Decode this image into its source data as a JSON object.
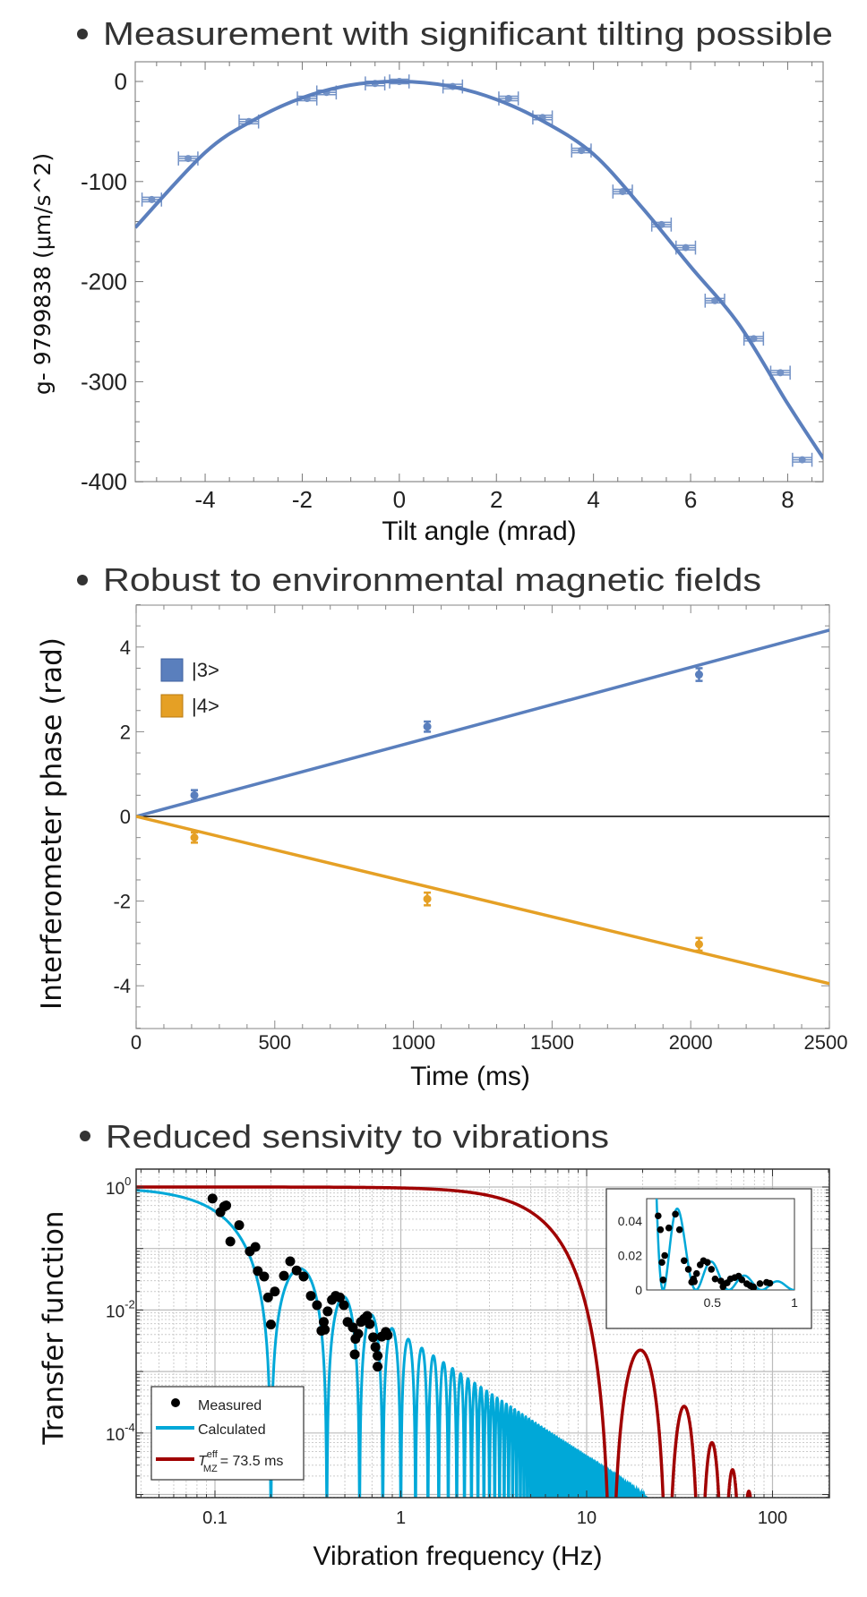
{
  "chart_data": [
    {
      "type": "scatter",
      "title": "Measurement with significant tilting possible",
      "xlabel": "Tilt angle (mrad)",
      "ylabel": "g- 9799838 (μm/s^2)",
      "xlim": [
        -5.44,
        8.74
      ],
      "ylim": [
        -400,
        20
      ],
      "xticks": [
        "-4",
        "-2",
        "0",
        "2",
        "4",
        "6",
        "8"
      ],
      "yticks": [
        "0",
        "-100",
        "-200",
        "-300",
        "-400"
      ],
      "color": "#5b7fbd",
      "points": [
        {
          "x": -5.1,
          "y": -118
        },
        {
          "x": -4.35,
          "y": -77
        },
        {
          "x": -3.1,
          "y": -40
        },
        {
          "x": -1.9,
          "y": -17
        },
        {
          "x": -1.5,
          "y": -11
        },
        {
          "x": -0.5,
          "y": -2
        },
        {
          "x": 0.0,
          "y": 0
        },
        {
          "x": 1.1,
          "y": -5
        },
        {
          "x": 2.25,
          "y": -17
        },
        {
          "x": 2.95,
          "y": -36
        },
        {
          "x": 3.75,
          "y": -69
        },
        {
          "x": 4.6,
          "y": -110
        },
        {
          "x": 5.4,
          "y": -143
        },
        {
          "x": 5.9,
          "y": -166
        },
        {
          "x": 6.5,
          "y": -219
        },
        {
          "x": 7.3,
          "y": -257
        },
        {
          "x": 7.85,
          "y": -291
        },
        {
          "x": 8.3,
          "y": -378
        }
      ],
      "x_error": 0.2,
      "y_error": 7,
      "fit_curve": [
        [
          -5.44,
          -146
        ],
        [
          -4,
          -71
        ],
        [
          -3,
          -38.6
        ],
        [
          -2,
          -16.3
        ],
        [
          -1,
          -3.6
        ],
        [
          0,
          0
        ],
        [
          1,
          -4.4
        ],
        [
          2,
          -18
        ],
        [
          3,
          -40.7
        ],
        [
          4,
          -72.7
        ],
        [
          5,
          -126
        ],
        [
          6,
          -185
        ],
        [
          7,
          -243
        ],
        [
          8,
          -322
        ],
        [
          8.74,
          -377
        ]
      ]
    },
    {
      "type": "scatter",
      "title": "Robust to environmental magnetic fields",
      "xlabel": "Time (ms)",
      "ylabel": "Interferometer phase (rad)",
      "xlim": [
        0,
        2500
      ],
      "ylim": [
        -5,
        5
      ],
      "xticks": [
        "0",
        "500",
        "1000",
        "1500",
        "2000",
        "2500"
      ],
      "yticks": [
        "4",
        "2",
        "0",
        "-2",
        "-4"
      ],
      "legend_position": "top-left",
      "series": [
        {
          "name": "|3>",
          "color": "#5a7fbd",
          "points": [
            {
              "x": 210,
              "y": 0.5,
              "err": 0.12
            },
            {
              "x": 1050,
              "y": 2.12,
              "err": 0.12
            },
            {
              "x": 2030,
              "y": 3.35,
              "err": 0.15
            }
          ],
          "fit": [
            [
              0,
              0
            ],
            [
              2500,
              4.4
            ]
          ]
        },
        {
          "name": "|4>",
          "color": "#e5a025",
          "points": [
            {
              "x": 210,
              "y": -0.5,
              "err": 0.12
            },
            {
              "x": 1050,
              "y": -1.95,
              "err": 0.15
            },
            {
              "x": 2030,
              "y": -3.02,
              "err": 0.15
            }
          ],
          "fit": [
            [
              0,
              0
            ],
            [
              2500,
              -3.95
            ]
          ]
        }
      ]
    },
    {
      "type": "line",
      "title": "Reduced sensivity to vibrations",
      "xlabel": "Vibration frequency (Hz)",
      "ylabel": "Transfer function",
      "xscale": "log",
      "yscale": "log",
      "xlim": [
        0.038,
        199
      ],
      "ylim": [
        8.9e-06,
        1.95
      ],
      "grid": true,
      "xticks": [
        "0.1",
        "1",
        "10",
        "100"
      ],
      "yticks": [
        {
          "base": "10",
          "exp": "0"
        },
        {
          "base": "10",
          "exp": "-2"
        },
        {
          "base": "10",
          "exp": "-4"
        }
      ],
      "legend_position": "bottom-left",
      "legend": {
        "measured": "Measured",
        "calculated": "Calculated",
        "tmz": {
          "symbol": "T",
          "sup": "eff",
          "sub": "MZ",
          "rest": "= 73.5 ms"
        }
      },
      "colors": {
        "measured": "#000000",
        "calculated": "#00a8d8",
        "tmz": "#a00000"
      },
      "measured": [
        [
          0.097,
          0.65
        ],
        [
          0.107,
          0.39
        ],
        [
          0.112,
          0.48
        ],
        [
          0.115,
          0.5
        ],
        [
          0.121,
          0.13
        ],
        [
          0.135,
          0.24
        ],
        [
          0.154,
          0.09
        ],
        [
          0.165,
          0.106
        ],
        [
          0.17,
          0.043
        ],
        [
          0.184,
          0.035
        ],
        [
          0.193,
          0.016
        ],
        [
          0.2,
          0.0058
        ],
        [
          0.21,
          0.02
        ],
        [
          0.235,
          0.036
        ],
        [
          0.254,
          0.062
        ],
        [
          0.275,
          0.044
        ],
        [
          0.3,
          0.035
        ],
        [
          0.328,
          0.017
        ],
        [
          0.354,
          0.012
        ],
        [
          0.374,
          0.0046
        ],
        [
          0.385,
          0.0064
        ],
        [
          0.39,
          0.0048
        ],
        [
          0.404,
          0.0095
        ],
        [
          0.426,
          0.0146
        ],
        [
          0.446,
          0.017
        ],
        [
          0.47,
          0.016
        ],
        [
          0.494,
          0.012
        ],
        [
          0.517,
          0.0064
        ],
        [
          0.552,
          0.0052
        ],
        [
          0.565,
          0.0019
        ],
        [
          0.57,
          0.0034
        ],
        [
          0.59,
          0.0041
        ],
        [
          0.61,
          0.0064
        ],
        [
          0.636,
          0.0072
        ],
        [
          0.66,
          0.008
        ],
        [
          0.68,
          0.0059
        ],
        [
          0.71,
          0.0036
        ],
        [
          0.73,
          0.0025
        ],
        [
          0.75,
          0.0018
        ],
        [
          0.75,
          0.0012
        ],
        [
          0.79,
          0.0037
        ],
        [
          0.83,
          0.0044
        ],
        [
          0.85,
          0.0039
        ]
      ],
      "inset": {
        "type": "line",
        "xlim": [
          0.1,
          1
        ],
        "ylim": [
          0,
          0.053
        ],
        "xticks": [
          "0.5",
          "1"
        ],
        "yticks": [
          "0.04",
          "0.02",
          "0"
        ]
      }
    }
  ]
}
